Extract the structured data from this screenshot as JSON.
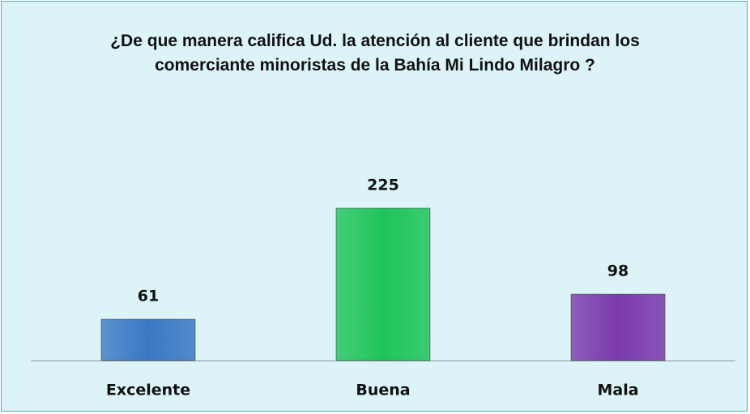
{
  "chart_data": {
    "type": "bar",
    "title": "¿De que manera califica Ud. la atención al cliente que brindan los comerciante minoristas de la Bahía Mi Lindo Milagro ?",
    "categories": [
      "Excelente",
      "Buena",
      "Mala"
    ],
    "values": [
      61,
      225,
      98
    ],
    "colors": [
      "#3a78c4",
      "#1ec45a",
      "#7a3aab"
    ]
  }
}
